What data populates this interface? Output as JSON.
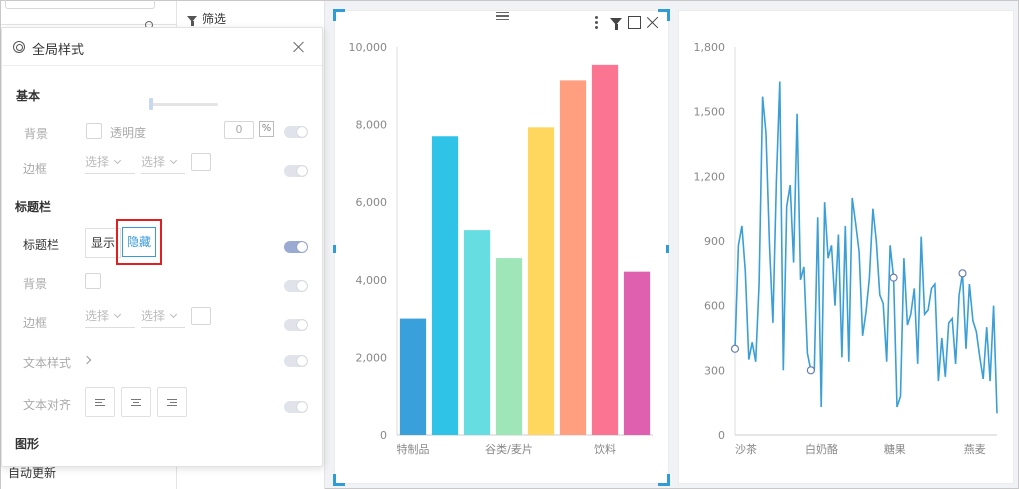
{
  "sidebar": {
    "auto_update_label": "自动更新"
  },
  "filter_panel": {
    "title": "筛选"
  },
  "style_panel": {
    "title": "全局样式",
    "basic_section": "基本",
    "background_label": "背景",
    "opacity_label": "透明度",
    "opacity_value": "0",
    "percent_symbol": "%",
    "border_label": "边框",
    "select_placeholder": "选择",
    "titlebar_section": "标题栏",
    "titlebar_label": "标题栏",
    "show_label": "显示",
    "hide_label": "隐藏",
    "tb_background_label": "背景",
    "tb_border_label": "边框",
    "text_style_label": "文本样式",
    "text_align_label": "文本对齐",
    "graphic_section": "图形",
    "toggles": {
      "bg": false,
      "border": false,
      "titlebar": true,
      "tb_bg": false,
      "tb_border": false,
      "text_style": false,
      "text_align": false
    },
    "selected_titlebar_option": "隐藏"
  },
  "chart_data": [
    {
      "type": "bar",
      "categories": [
        "特制品",
        "",
        "",
        "谷类/麦片",
        "",
        "",
        "饮料",
        ""
      ],
      "values": [
        3000,
        7700,
        5280,
        4560,
        7930,
        9140,
        9540,
        4210
      ],
      "colors": [
        "#3aa0dc",
        "#2fc3e8",
        "#66dde0",
        "#9ee6b8",
        "#ffd75f",
        "#ff9f80",
        "#fb7491",
        "#e060b0"
      ],
      "ylim": [
        0,
        10000
      ],
      "yticks": [
        "0",
        "2,000",
        "4,000",
        "6,000",
        "8,000",
        "10,000"
      ],
      "ytick_values": [
        0,
        2000,
        4000,
        6000,
        8000,
        10000
      ]
    },
    {
      "type": "line",
      "x_labels": [
        "沙茶",
        "白奶酪",
        "糖果",
        "燕麦"
      ],
      "ylim": [
        0,
        1800
      ],
      "yticks": [
        "0",
        "300",
        "600",
        "900",
        "1,200",
        "1,500",
        "1,800"
      ],
      "ytick_values": [
        0,
        300,
        600,
        900,
        1200,
        1500,
        1800
      ],
      "color": "#3a9fd6",
      "values": [
        400,
        880,
        970,
        760,
        350,
        430,
        340,
        700,
        1570,
        1400,
        880,
        520,
        1180,
        1640,
        300,
        1060,
        1160,
        800,
        1490,
        720,
        780,
        380,
        300,
        300,
        1010,
        130,
        1080,
        820,
        880,
        600,
        930,
        360,
        970,
        340,
        1100,
        980,
        850,
        460,
        570,
        730,
        1050,
        900,
        650,
        610,
        340,
        880,
        730,
        130,
        180,
        820,
        510,
        560,
        680,
        330,
        920,
        560,
        580,
        680,
        700,
        250,
        450,
        270,
        520,
        540,
        330,
        650,
        750,
        400,
        700,
        530,
        480,
        360,
        260,
        500,
        250,
        600,
        100
      ],
      "marker_indices": [
        0,
        22,
        46,
        66
      ]
    }
  ]
}
